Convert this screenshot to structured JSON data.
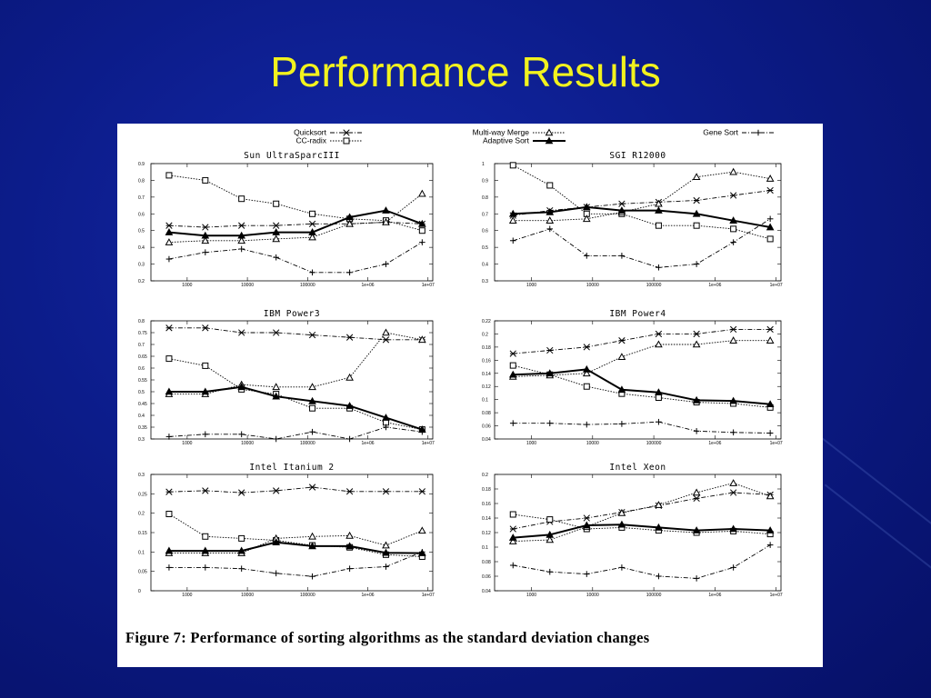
{
  "slide": {
    "title": "Performance Results",
    "caption": "Figure 7:  Performance of sorting algorithms as the standard deviation changes",
    "colors": {
      "background": "#0c1c8a",
      "title": "#f2f21e",
      "figure": "#ffffff"
    }
  },
  "legend": {
    "placement": "top",
    "entries": [
      {
        "key": "quicksort",
        "label": "Quicksort",
        "marker": "asterisk",
        "style": "dash-dot"
      },
      {
        "key": "ccradix",
        "label": "CC-radix",
        "marker": "square",
        "style": "dotted"
      },
      {
        "key": "multiway",
        "label": "Multi-way Merge",
        "marker": "triangle",
        "style": "dotted"
      },
      {
        "key": "adaptive",
        "label": "Adaptive Sort",
        "marker": "filled-triangle",
        "style": "solid-thick"
      },
      {
        "key": "gene",
        "label": "Gene Sort",
        "marker": "plus",
        "style": "dash-dot"
      }
    ]
  },
  "chart_data": [
    {
      "type": "line",
      "title": "Sun UltraSparcIII",
      "x_scale": "log",
      "x": [
        500,
        2000,
        8000,
        30000,
        120000,
        500000,
        2000000,
        8000000
      ],
      "xticks": [
        "1000",
        "10000",
        "100000",
        "1e+06",
        "1e+07"
      ],
      "xtick_values": [
        1000,
        10000,
        100000,
        1000000,
        10000000
      ],
      "xlim": [
        250,
        12000000
      ],
      "ylim": [
        0.2,
        0.9
      ],
      "yticks": [
        "0.2",
        "0.3",
        "0.4",
        "0.5",
        "0.6",
        "0.7",
        "0.8",
        "0.9"
      ],
      "ytick_values": [
        0.2,
        0.3,
        0.4,
        0.5,
        0.6,
        0.7,
        0.8,
        0.9
      ],
      "series": [
        {
          "key": "quicksort",
          "values": [
            0.53,
            0.52,
            0.53,
            0.53,
            0.54,
            0.54,
            0.55,
            0.54
          ]
        },
        {
          "key": "ccradix",
          "values": [
            0.83,
            0.8,
            0.69,
            0.66,
            0.6,
            0.57,
            0.56,
            0.5
          ]
        },
        {
          "key": "multiway",
          "values": [
            0.43,
            0.44,
            0.44,
            0.45,
            0.46,
            0.54,
            0.55,
            0.72
          ]
        },
        {
          "key": "adaptive",
          "values": [
            0.49,
            0.47,
            0.47,
            0.49,
            0.49,
            0.58,
            0.62,
            0.54
          ]
        },
        {
          "key": "gene",
          "values": [
            0.33,
            0.37,
            0.39,
            0.34,
            0.25,
            0.25,
            0.3,
            0.43
          ]
        }
      ]
    },
    {
      "type": "line",
      "title": "SGI R12000",
      "x_scale": "log",
      "x": [
        500,
        2000,
        8000,
        30000,
        120000,
        500000,
        2000000,
        8000000
      ],
      "xticks": [
        "1000",
        "10000",
        "100000",
        "1e+06",
        "1e+07"
      ],
      "xtick_values": [
        1000,
        10000,
        100000,
        1000000,
        10000000
      ],
      "xlim": [
        250,
        12000000
      ],
      "ylim": [
        0.3,
        1.0
      ],
      "yticks": [
        "0.3",
        "0.4",
        "0.5",
        "0.6",
        "0.7",
        "0.8",
        "0.9",
        "1"
      ],
      "ytick_values": [
        0.3,
        0.4,
        0.5,
        0.6,
        0.7,
        0.8,
        0.9,
        1.0
      ],
      "series": [
        {
          "key": "quicksort",
          "values": [
            0.69,
            0.72,
            0.74,
            0.76,
            0.77,
            0.78,
            0.81,
            0.84
          ]
        },
        {
          "key": "ccradix",
          "values": [
            0.99,
            0.87,
            0.7,
            0.7,
            0.63,
            0.63,
            0.61,
            0.55
          ]
        },
        {
          "key": "multiway",
          "values": [
            0.66,
            0.66,
            0.67,
            0.71,
            0.76,
            0.92,
            0.95,
            0.91
          ]
        },
        {
          "key": "adaptive",
          "values": [
            0.7,
            0.71,
            0.74,
            0.72,
            0.72,
            0.7,
            0.66,
            0.62
          ]
        },
        {
          "key": "gene",
          "values": [
            0.54,
            0.61,
            0.45,
            0.45,
            0.38,
            0.4,
            0.53,
            0.67
          ]
        }
      ]
    },
    {
      "type": "line",
      "title": "IBM Power3",
      "x_scale": "log",
      "x": [
        500,
        2000,
        8000,
        30000,
        120000,
        500000,
        2000000,
        8000000
      ],
      "xticks": [
        "1000",
        "10000",
        "100000",
        "1e+06",
        "1e+07"
      ],
      "xtick_values": [
        1000,
        10000,
        100000,
        1000000,
        10000000
      ],
      "xlim": [
        250,
        12000000
      ],
      "ylim": [
        0.3,
        0.8
      ],
      "yticks": [
        "0.3",
        "0.35",
        "0.4",
        "0.45",
        "0.5",
        "0.55",
        "0.6",
        "0.65",
        "0.7",
        "0.75",
        "0.8"
      ],
      "ytick_values": [
        0.3,
        0.35,
        0.4,
        0.45,
        0.5,
        0.55,
        0.6,
        0.65,
        0.7,
        0.75,
        0.8
      ],
      "series": [
        {
          "key": "quicksort",
          "values": [
            0.77,
            0.77,
            0.75,
            0.75,
            0.74,
            0.73,
            0.72,
            0.72
          ]
        },
        {
          "key": "ccradix",
          "values": [
            0.64,
            0.61,
            0.51,
            0.49,
            0.43,
            0.43,
            0.37,
            0.34
          ]
        },
        {
          "key": "multiway",
          "values": [
            0.49,
            0.49,
            0.53,
            0.52,
            0.52,
            0.56,
            0.75,
            0.72
          ]
        },
        {
          "key": "adaptive",
          "values": [
            0.5,
            0.5,
            0.52,
            0.48,
            0.46,
            0.44,
            0.39,
            0.34
          ]
        },
        {
          "key": "gene",
          "values": [
            0.31,
            0.32,
            0.32,
            0.3,
            0.33,
            0.3,
            0.35,
            0.33
          ]
        }
      ]
    },
    {
      "type": "line",
      "title": "IBM Power4",
      "x_scale": "log",
      "x": [
        500,
        2000,
        8000,
        30000,
        120000,
        500000,
        2000000,
        8000000
      ],
      "xticks": [
        "1000",
        "10000",
        "100000",
        "1e+06",
        "1e+07"
      ],
      "xtick_values": [
        1000,
        10000,
        100000,
        1000000,
        10000000
      ],
      "xlim": [
        250,
        12000000
      ],
      "ylim": [
        0.04,
        0.22
      ],
      "yticks": [
        "0.04",
        "0.06",
        "0.08",
        "0.1",
        "0.12",
        "0.14",
        "0.16",
        "0.18",
        "0.2",
        "0.22"
      ],
      "ytick_values": [
        0.04,
        0.06,
        0.08,
        0.1,
        0.12,
        0.14,
        0.16,
        0.18,
        0.2,
        0.22
      ],
      "series": [
        {
          "key": "quicksort",
          "values": [
            0.17,
            0.175,
            0.18,
            0.19,
            0.2,
            0.2,
            0.207,
            0.207
          ]
        },
        {
          "key": "ccradix",
          "values": [
            0.152,
            0.138,
            0.12,
            0.109,
            0.103,
            0.096,
            0.094,
            0.088
          ]
        },
        {
          "key": "multiway",
          "values": [
            0.135,
            0.137,
            0.14,
            0.165,
            0.184,
            0.184,
            0.19,
            0.19
          ]
        },
        {
          "key": "adaptive",
          "values": [
            0.138,
            0.14,
            0.146,
            0.115,
            0.111,
            0.099,
            0.098,
            0.093
          ]
        },
        {
          "key": "gene",
          "values": [
            0.064,
            0.064,
            0.062,
            0.063,
            0.066,
            0.052,
            0.05,
            0.049
          ]
        }
      ]
    },
    {
      "type": "line",
      "title": "Intel Itanium 2",
      "x_scale": "log",
      "x": [
        500,
        2000,
        8000,
        30000,
        120000,
        500000,
        2000000,
        8000000
      ],
      "xticks": [
        "1000",
        "10000",
        "100000",
        "1e+06",
        "1e+07"
      ],
      "xtick_values": [
        1000,
        10000,
        100000,
        1000000,
        10000000
      ],
      "xlim": [
        250,
        12000000
      ],
      "ylim": [
        0,
        0.3
      ],
      "yticks": [
        "0",
        "0.05",
        "0.1",
        "0.15",
        "0.2",
        "0.25",
        "0.3"
      ],
      "ytick_values": [
        0,
        0.05,
        0.1,
        0.15,
        0.2,
        0.25,
        0.3
      ],
      "series": [
        {
          "key": "quicksort",
          "values": [
            0.255,
            0.258,
            0.253,
            0.258,
            0.267,
            0.256,
            0.256,
            0.256
          ]
        },
        {
          "key": "ccradix",
          "values": [
            0.198,
            0.14,
            0.135,
            0.13,
            0.117,
            0.112,
            0.093,
            0.088
          ]
        },
        {
          "key": "multiway",
          "values": [
            0.097,
            0.097,
            0.097,
            0.135,
            0.14,
            0.142,
            0.117,
            0.155
          ]
        },
        {
          "key": "adaptive",
          "values": [
            0.103,
            0.103,
            0.103,
            0.125,
            0.115,
            0.115,
            0.098,
            0.097
          ]
        },
        {
          "key": "gene",
          "values": [
            0.06,
            0.06,
            0.057,
            0.045,
            0.037,
            0.057,
            0.062,
            0.1
          ]
        }
      ]
    },
    {
      "type": "line",
      "title": "Intel Xeon",
      "x_scale": "log",
      "x": [
        500,
        2000,
        8000,
        30000,
        120000,
        500000,
        2000000,
        8000000
      ],
      "xticks": [
        "1000",
        "10000",
        "100000",
        "1e+06",
        "1e+07"
      ],
      "xtick_values": [
        1000,
        10000,
        100000,
        1000000,
        10000000
      ],
      "xlim": [
        250,
        12000000
      ],
      "ylim": [
        0.04,
        0.2
      ],
      "yticks": [
        "0.04",
        "0.06",
        "0.08",
        "0.1",
        "0.12",
        "0.14",
        "0.16",
        "0.18",
        "0.2"
      ],
      "ytick_values": [
        0.04,
        0.06,
        0.08,
        0.1,
        0.12,
        0.14,
        0.16,
        0.18,
        0.2
      ],
      "series": [
        {
          "key": "quicksort",
          "values": [
            0.125,
            0.135,
            0.14,
            0.148,
            0.157,
            0.167,
            0.175,
            0.172
          ]
        },
        {
          "key": "ccradix",
          "values": [
            0.145,
            0.138,
            0.125,
            0.127,
            0.123,
            0.12,
            0.122,
            0.118
          ]
        },
        {
          "key": "multiway",
          "values": [
            0.108,
            0.11,
            0.128,
            0.147,
            0.158,
            0.175,
            0.188,
            0.17
          ]
        },
        {
          "key": "adaptive",
          "values": [
            0.113,
            0.117,
            0.13,
            0.131,
            0.127,
            0.123,
            0.125,
            0.123
          ]
        },
        {
          "key": "gene",
          "values": [
            0.075,
            0.066,
            0.063,
            0.072,
            0.06,
            0.057,
            0.072,
            0.103
          ]
        }
      ]
    }
  ]
}
